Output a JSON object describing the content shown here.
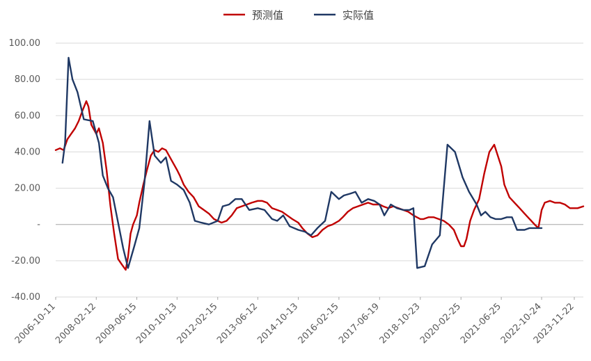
{
  "chart_data": {
    "type": "line",
    "title": "",
    "xlabel": "",
    "ylabel": "",
    "ylim": [
      -40,
      100
    ],
    "y_ticks": [
      100,
      80,
      60,
      40,
      20,
      0,
      -20,
      -40
    ],
    "y_tick_labels": [
      "100.00",
      "80.00",
      "60.00",
      "40.00",
      "20.00",
      "-",
      "-20.00",
      "-40.00"
    ],
    "x_range": [
      "2006-10-11",
      "2024-03-10"
    ],
    "x_tick_labels": [
      "2006-10-11",
      "2008-02-12",
      "2009-06-15",
      "2010-10-13",
      "2012-02-15",
      "2013-06-12",
      "2014-10-13",
      "2016-02-15",
      "2017-06-19",
      "2018-10-23",
      "2020-02-25",
      "2021-06-25",
      "2022-10-24",
      "2023-11-22"
    ],
    "grid": "horizontal",
    "legend_position": "top-center",
    "series": [
      {
        "name": "预测值",
        "color": "#c00000",
        "points": [
          [
            "2006-10-11",
            41
          ],
          [
            "2006-12-01",
            42
          ],
          [
            "2007-01-15",
            41
          ],
          [
            "2007-03-01",
            47
          ],
          [
            "2007-04-15",
            50
          ],
          [
            "2007-06-01",
            53
          ],
          [
            "2007-07-15",
            57
          ],
          [
            "2007-09-01",
            63
          ],
          [
            "2007-10-15",
            68
          ],
          [
            "2007-11-10",
            65
          ],
          [
            "2007-12-15",
            55
          ],
          [
            "2008-02-12",
            50
          ],
          [
            "2008-03-15",
            53
          ],
          [
            "2008-05-01",
            45
          ],
          [
            "2008-06-15",
            30
          ],
          [
            "2008-08-01",
            10
          ],
          [
            "2008-09-15",
            -5
          ],
          [
            "2008-11-01",
            -19
          ],
          [
            "2008-12-15",
            -22
          ],
          [
            "2009-02-01",
            -25
          ],
          [
            "2009-03-01",
            -18
          ],
          [
            "2009-04-01",
            -5
          ],
          [
            "2009-05-01",
            0
          ],
          [
            "2009-06-15",
            5
          ],
          [
            "2009-07-15",
            12
          ],
          [
            "2009-09-01",
            22
          ],
          [
            "2009-10-15",
            30
          ],
          [
            "2009-12-01",
            38
          ],
          [
            "2010-01-15",
            41
          ],
          [
            "2010-03-01",
            40
          ],
          [
            "2010-04-15",
            42
          ],
          [
            "2010-06-01",
            41
          ],
          [
            "2010-08-01",
            36
          ],
          [
            "2010-10-13",
            30
          ],
          [
            "2010-11-15",
            27
          ],
          [
            "2011-01-01",
            22
          ],
          [
            "2011-03-01",
            18
          ],
          [
            "2011-05-01",
            15
          ],
          [
            "2011-07-01",
            10
          ],
          [
            "2011-09-01",
            8
          ],
          [
            "2011-11-01",
            6
          ],
          [
            "2012-01-01",
            3
          ],
          [
            "2012-02-15",
            2
          ],
          [
            "2012-04-01",
            1
          ],
          [
            "2012-06-01",
            2
          ],
          [
            "2012-08-01",
            5
          ],
          [
            "2012-10-01",
            9
          ],
          [
            "2012-12-01",
            10
          ],
          [
            "2013-02-01",
            11
          ],
          [
            "2013-04-01",
            12
          ],
          [
            "2013-06-12",
            13
          ],
          [
            "2013-08-01",
            13
          ],
          [
            "2013-10-01",
            12
          ],
          [
            "2013-12-01",
            9
          ],
          [
            "2014-02-01",
            8
          ],
          [
            "2014-04-01",
            7
          ],
          [
            "2014-06-01",
            5
          ],
          [
            "2014-08-01",
            3
          ],
          [
            "2014-10-13",
            1
          ],
          [
            "2014-12-01",
            -2
          ],
          [
            "2015-02-01",
            -5
          ],
          [
            "2015-04-01",
            -7
          ],
          [
            "2015-06-01",
            -6
          ],
          [
            "2015-08-01",
            -3
          ],
          [
            "2015-10-01",
            -1
          ],
          [
            "2015-12-01",
            0
          ],
          [
            "2016-02-15",
            2
          ],
          [
            "2016-04-01",
            4
          ],
          [
            "2016-06-01",
            7
          ],
          [
            "2016-08-01",
            9
          ],
          [
            "2016-10-01",
            10
          ],
          [
            "2016-12-01",
            11
          ],
          [
            "2017-02-01",
            12
          ],
          [
            "2017-04-01",
            11
          ],
          [
            "2017-06-19",
            11
          ],
          [
            "2017-08-01",
            10
          ],
          [
            "2017-10-01",
            9
          ],
          [
            "2017-12-01",
            10
          ],
          [
            "2018-02-01",
            9
          ],
          [
            "2018-04-01",
            8
          ],
          [
            "2018-06-01",
            7
          ],
          [
            "2018-08-01",
            5
          ],
          [
            "2018-10-23",
            3
          ],
          [
            "2018-12-01",
            3
          ],
          [
            "2019-02-01",
            4
          ],
          [
            "2019-04-01",
            4
          ],
          [
            "2019-06-01",
            3
          ],
          [
            "2019-08-01",
            2
          ],
          [
            "2019-10-01",
            0
          ],
          [
            "2019-12-01",
            -3
          ],
          [
            "2020-01-15",
            -8
          ],
          [
            "2020-02-25",
            -12
          ],
          [
            "2020-04-01",
            -12
          ],
          [
            "2020-05-01",
            -8
          ],
          [
            "2020-06-15",
            2
          ],
          [
            "2020-08-01",
            8
          ],
          [
            "2020-10-01",
            14
          ],
          [
            "2020-12-01",
            28
          ],
          [
            "2021-02-01",
            40
          ],
          [
            "2021-04-01",
            44
          ],
          [
            "2021-06-25",
            32
          ],
          [
            "2021-08-01",
            22
          ],
          [
            "2021-10-01",
            15
          ],
          [
            "2021-12-01",
            12
          ],
          [
            "2022-02-01",
            9
          ],
          [
            "2022-04-01",
            6
          ],
          [
            "2022-06-01",
            3
          ],
          [
            "2022-08-01",
            0
          ],
          [
            "2022-09-15",
            -2
          ],
          [
            "2022-10-24",
            8
          ],
          [
            "2022-12-01",
            12
          ],
          [
            "2023-02-01",
            13
          ],
          [
            "2023-04-01",
            12
          ],
          [
            "2023-06-01",
            12
          ],
          [
            "2023-08-01",
            11
          ],
          [
            "2023-10-01",
            9
          ],
          [
            "2023-11-22",
            9
          ],
          [
            "2024-01-01",
            9
          ],
          [
            "2024-03-10",
            10
          ]
        ]
      },
      {
        "name": "实际值",
        "color": "#1f3864",
        "points": [
          [
            "2007-01-01",
            34
          ],
          [
            "2007-02-01",
            45
          ],
          [
            "2007-03-15",
            92
          ],
          [
            "2007-05-01",
            80
          ],
          [
            "2007-07-01",
            73
          ],
          [
            "2007-09-15",
            58
          ],
          [
            "2008-01-01",
            57
          ],
          [
            "2008-03-15",
            45
          ],
          [
            "2008-05-01",
            27
          ],
          [
            "2008-07-01",
            20
          ],
          [
            "2008-09-01",
            15
          ],
          [
            "2008-10-15",
            5
          ],
          [
            "2009-01-01",
            -13
          ],
          [
            "2009-03-01",
            -24
          ],
          [
            "2009-05-15",
            -12
          ],
          [
            "2009-07-15",
            -2
          ],
          [
            "2009-09-15",
            23
          ],
          [
            "2009-11-15",
            57
          ],
          [
            "2010-01-15",
            38
          ],
          [
            "2010-04-01",
            34
          ],
          [
            "2010-06-01",
            37
          ],
          [
            "2010-08-01",
            24
          ],
          [
            "2010-10-13",
            22
          ],
          [
            "2011-01-01",
            19
          ],
          [
            "2011-03-15",
            12
          ],
          [
            "2011-05-15",
            2
          ],
          [
            "2011-08-01",
            1
          ],
          [
            "2011-11-01",
            0
          ],
          [
            "2012-02-15",
            2
          ],
          [
            "2012-04-15",
            10
          ],
          [
            "2012-07-01",
            11
          ],
          [
            "2012-09-15",
            14
          ],
          [
            "2012-12-01",
            14
          ],
          [
            "2013-03-01",
            8
          ],
          [
            "2013-06-12",
            9
          ],
          [
            "2013-09-01",
            8
          ],
          [
            "2013-12-01",
            3
          ],
          [
            "2014-02-01",
            2
          ],
          [
            "2014-04-15",
            5
          ],
          [
            "2014-07-01",
            -1
          ],
          [
            "2014-10-13",
            -3
          ],
          [
            "2015-01-01",
            -4
          ],
          [
            "2015-03-15",
            -6
          ],
          [
            "2015-06-01",
            -2
          ],
          [
            "2015-09-01",
            2
          ],
          [
            "2015-11-15",
            18
          ],
          [
            "2016-02-15",
            14
          ],
          [
            "2016-04-15",
            16
          ],
          [
            "2016-07-01",
            17
          ],
          [
            "2016-09-01",
            18
          ],
          [
            "2016-11-15",
            12
          ],
          [
            "2017-02-01",
            14
          ],
          [
            "2017-04-15",
            13
          ],
          [
            "2017-06-19",
            11
          ],
          [
            "2017-08-15",
            5
          ],
          [
            "2017-11-01",
            11
          ],
          [
            "2018-01-15",
            9
          ],
          [
            "2018-04-01",
            8
          ],
          [
            "2018-06-15",
            8
          ],
          [
            "2018-08-01",
            9
          ],
          [
            "2018-09-15",
            -24
          ],
          [
            "2018-12-15",
            -23
          ],
          [
            "2019-03-15",
            -11
          ],
          [
            "2019-06-15",
            -6
          ],
          [
            "2019-09-15",
            44
          ],
          [
            "2019-12-15",
            40
          ],
          [
            "2020-03-15",
            26
          ],
          [
            "2020-06-01",
            18
          ],
          [
            "2020-09-01",
            11
          ],
          [
            "2020-10-24",
            5
          ],
          [
            "2020-12-15",
            7
          ],
          [
            "2021-02-15",
            4
          ],
          [
            "2021-04-15",
            3
          ],
          [
            "2021-06-25",
            3
          ],
          [
            "2021-09-01",
            4
          ],
          [
            "2021-11-01",
            4
          ],
          [
            "2022-01-01",
            -3
          ],
          [
            "2022-04-01",
            -3
          ],
          [
            "2022-06-01",
            -2
          ],
          [
            "2022-10-24",
            -2
          ]
        ]
      }
    ]
  }
}
